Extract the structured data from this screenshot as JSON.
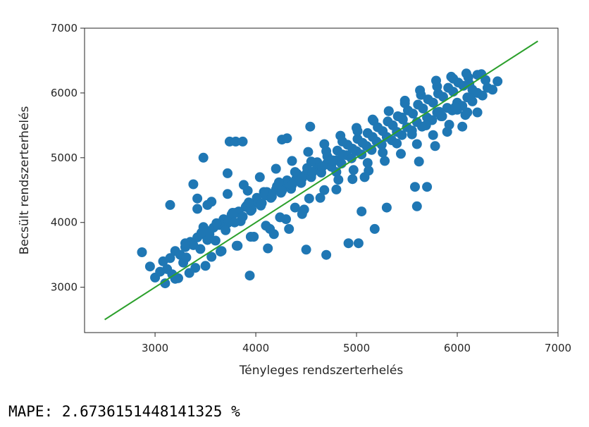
{
  "chart_data": {
    "type": "scatter",
    "title": "",
    "xlabel": "Tényleges rendszerterhelés",
    "ylabel": "Becsült rendszerterhelés",
    "xlim": [
      2300,
      7000
    ],
    "ylim": [
      2300,
      7000
    ],
    "xticks": [
      3000,
      4000,
      5000,
      6000,
      7000
    ],
    "yticks": [
      3000,
      4000,
      5000,
      6000,
      7000
    ],
    "grid": false,
    "colors": {
      "points": "#1f77b4",
      "line": "#2ca02c",
      "axes": "#262626"
    },
    "series": [
      {
        "kind": "points",
        "x": [
          2870,
          2950,
          3000,
          3050,
          3080,
          3120,
          3150,
          3200,
          3250,
          3300,
          3350,
          3420,
          3460,
          3500,
          3520,
          3580,
          3620,
          3680,
          3720,
          3760,
          3800,
          3850,
          3900,
          3950,
          4000,
          4050,
          4100,
          4150,
          4200,
          4250,
          4300,
          4350,
          4400,
          4450,
          4500,
          4550,
          4600,
          4650,
          4700,
          4750,
          4800,
          4850,
          4900,
          4950,
          5000,
          5050,
          5100,
          5150,
          5200,
          5250,
          5300,
          5350,
          5400,
          5450,
          5500,
          5550,
          5600,
          5650,
          5700,
          5750,
          5800,
          5850,
          5900,
          5950,
          6000,
          6050,
          6100,
          6150,
          6200,
          6250,
          6300,
          6350,
          6400,
          3170,
          3280,
          3310,
          3380,
          3450,
          3480,
          3540,
          3600,
          3640,
          3700,
          3740,
          3790,
          3830,
          3870,
          3910,
          3960,
          4010,
          4060,
          4110,
          4160,
          4210,
          4260,
          4310,
          4360,
          4410,
          4460,
          4510,
          4560,
          4610,
          4660,
          4710,
          4760,
          4810,
          4860,
          4910,
          4960,
          5010,
          5060,
          5110,
          5160,
          5210,
          5260,
          5310,
          5360,
          5410,
          5460,
          5510,
          5560,
          5610,
          5660,
          5710,
          5760,
          5810,
          5860,
          5910,
          5960,
          6010,
          6060,
          6110,
          3100,
          3230,
          3400,
          3560,
          3660,
          3820,
          3980,
          4140,
          4300,
          4480,
          4640,
          4800,
          4960,
          5120,
          5280,
          5440,
          5600,
          5760,
          5920,
          6080,
          3420,
          3560,
          3720,
          3880,
          4040,
          4200,
          4360,
          4520,
          4680,
          4840,
          5000,
          5160,
          5320,
          5480,
          5640,
          5800,
          5960,
          6120,
          6200,
          6280,
          3150,
          3380,
          3420,
          3480,
          3520,
          3720,
          3740,
          3800,
          3870,
          3920,
          3940,
          4120,
          4180,
          4260,
          4310,
          4330,
          4460,
          4500,
          4540,
          4700,
          4800,
          4920,
          5020,
          5050,
          5080,
          5180,
          5300,
          5450,
          5580,
          5600,
          5620,
          5700,
          5780,
          5820,
          5900,
          6000,
          6050,
          6100,
          6150,
          6200,
          3200,
          3340,
          3500,
          3650,
          3810,
          3950,
          4100,
          4240,
          4390,
          4530,
          4680,
          4820,
          4970,
          5110,
          5260,
          5400,
          5550,
          5690,
          5840,
          5980,
          6130,
          3300,
          3460,
          3610,
          3770,
          3930,
          4080,
          4230,
          4390,
          4550,
          4700,
          4860,
          5010,
          5170,
          5320,
          5480,
          5630,
          5790,
          5940,
          6090,
          6240
        ],
        "y": [
          3540,
          3320,
          3150,
          3240,
          3400,
          3280,
          3450,
          3560,
          3500,
          3620,
          3700,
          3770,
          3820,
          3880,
          3730,
          3920,
          3980,
          4050,
          3990,
          4120,
          4150,
          4020,
          4240,
          4180,
          4310,
          4260,
          4420,
          4380,
          4510,
          4460,
          4580,
          4520,
          4670,
          4610,
          4750,
          4700,
          4820,
          4770,
          4900,
          4860,
          4960,
          4910,
          5040,
          4990,
          5100,
          5050,
          5180,
          5120,
          5250,
          5200,
          5320,
          5270,
          5400,
          5350,
          5470,
          5420,
          5550,
          5480,
          5620,
          5580,
          5700,
          5640,
          5770,
          5730,
          5850,
          5800,
          5930,
          5870,
          6000,
          5960,
          6080,
          6050,
          6180,
          3200,
          3380,
          3460,
          3650,
          3590,
          3930,
          3820,
          3720,
          3960,
          3880,
          4050,
          4000,
          4170,
          4090,
          4260,
          4200,
          4380,
          4300,
          4470,
          4400,
          4560,
          4490,
          4650,
          4580,
          4750,
          4680,
          4840,
          4770,
          4930,
          4860,
          5020,
          4960,
          5110,
          5050,
          5200,
          5140,
          5290,
          5230,
          5380,
          5320,
          5470,
          5410,
          5560,
          5500,
          5640,
          5590,
          5730,
          5680,
          5820,
          5760,
          5900,
          5850,
          5990,
          5940,
          6080,
          6020,
          6160,
          6110,
          6240,
          3060,
          3140,
          3300,
          3470,
          3560,
          3640,
          3780,
          3900,
          4050,
          4200,
          4380,
          4510,
          4670,
          4800,
          4950,
          5060,
          5210,
          5350,
          5510,
          5660,
          4210,
          4320,
          4440,
          4580,
          4700,
          4830,
          4950,
          5090,
          5210,
          5340,
          5460,
          5590,
          5720,
          5840,
          5970,
          6100,
          6220,
          6140,
          6280,
          6200,
          4270,
          4590,
          4370,
          5000,
          4270,
          4760,
          5250,
          5250,
          5250,
          4490,
          3180,
          3600,
          3820,
          5280,
          5300,
          3900,
          4130,
          3580,
          5480,
          3500,
          4780,
          3680,
          3680,
          4170,
          4700,
          3900,
          4230,
          5620,
          4550,
          4250,
          4940,
          4550,
          5180,
          5710,
          5400,
          5740,
          5480,
          5700,
          6050,
          5700,
          3130,
          3220,
          3330,
          3550,
          3640,
          3780,
          3950,
          4080,
          4230,
          4370,
          4500,
          4660,
          4810,
          4920,
          5080,
          5220,
          5360,
          5500,
          5640,
          5780,
          5920,
          3680,
          3840,
          3990,
          4150,
          4310,
          4470,
          4620,
          4780,
          4940,
          5100,
          5250,
          5410,
          5570,
          5720,
          5880,
          6040,
          6190,
          6250,
          6300,
          6290
        ]
      },
      {
        "kind": "line",
        "x": [
          2500,
          6800
        ],
        "y": [
          2500,
          6800
        ]
      }
    ]
  },
  "mape_text": "MAPE: 2.6736151448141325 %"
}
